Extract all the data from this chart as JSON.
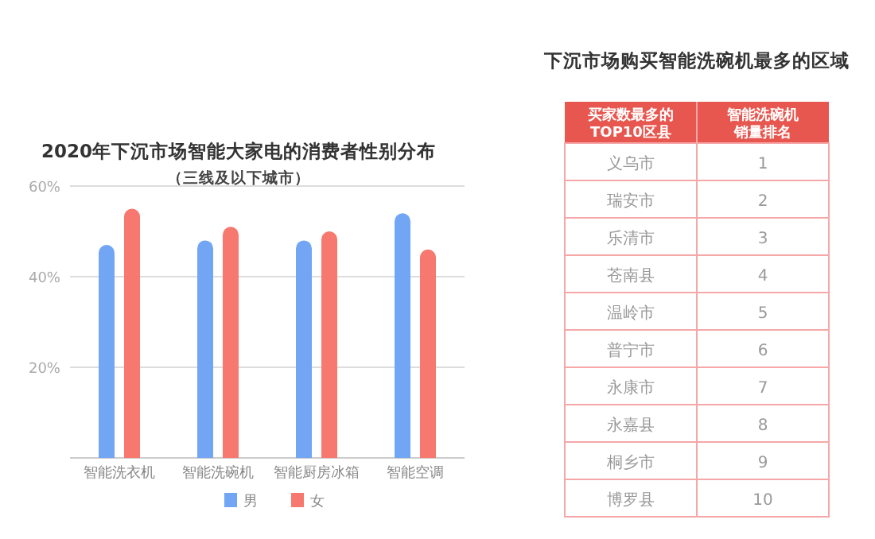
{
  "chart_data": [
    {
      "type": "bar",
      "title": "2020年下沉市场智能大家电的消费者性别分布",
      "subtitle": "（三线及以下城市）",
      "categories": [
        "智能洗衣机",
        "智能洗碗机",
        "智能厨房冰箱",
        "智能空调"
      ],
      "series": [
        {
          "name": "男",
          "color": "#72a6f5",
          "values": [
            47,
            48,
            48,
            54
          ]
        },
        {
          "name": "女",
          "color": "#f7786e",
          "values": [
            55,
            51,
            50,
            46
          ]
        }
      ],
      "ylim": [
        0,
        60
      ],
      "yticks": [
        {
          "value": 0,
          "label": null
        },
        {
          "value": 20,
          "label": "20%"
        },
        {
          "value": 40,
          "label": "40%"
        },
        {
          "value": 60,
          "label": "60%"
        }
      ],
      "grid": "y",
      "legend": "bottom"
    },
    {
      "type": "other",
      "title": "下沉市场购买智能洗碗机最多的区域",
      "xlabel": "买家数最多的TOP10区县",
      "ylabel": "智能洗碗机销量排名",
      "categories": [
        "义乌市",
        "瑞安市",
        "乐清市",
        "苍南县",
        "温岭市",
        "普宁市",
        "永康市",
        "永嘉县",
        "桐乡市",
        "博罗县"
      ],
      "values": [
        1,
        2,
        3,
        4,
        5,
        6,
        7,
        8,
        9,
        10
      ],
      "data_labels": true
    }
  ]
}
